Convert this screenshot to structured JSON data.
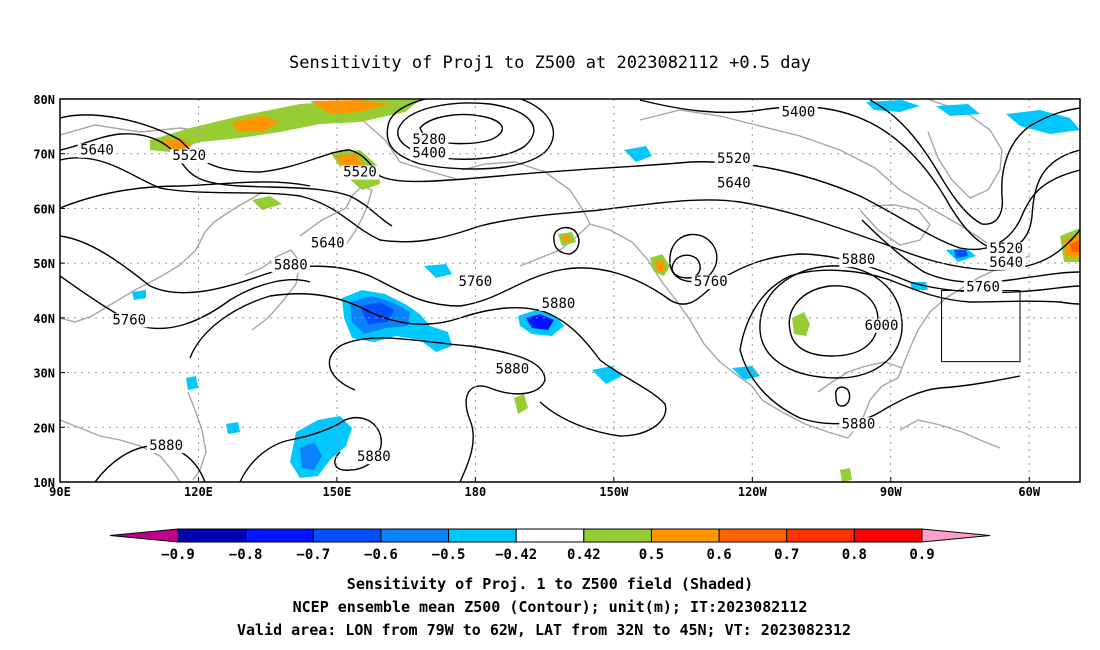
{
  "map": {
    "title": "Sensitivity of Proj1 to Z500 at 2023082112 +0.5 day",
    "lon_ticks": [
      "90E",
      "120E",
      "150E",
      "180",
      "150W",
      "120W",
      "90W",
      "60W"
    ],
    "lat_ticks": [
      "80N",
      "70N",
      "60N",
      "50N",
      "40N",
      "30N",
      "20N",
      "10N"
    ],
    "extent": {
      "lon_min_east": 90,
      "lon_max_east": 311,
      "lat_min": 10,
      "lat_max": 80
    },
    "contour_labels": [
      {
        "text": "5640",
        "lon": 98,
        "lat": 70
      },
      {
        "text": "5520",
        "lon": 118,
        "lat": 69
      },
      {
        "text": "5280",
        "lon": 170,
        "lat": 72
      },
      {
        "text": "5400",
        "lon": 170,
        "lat": 69.5
      },
      {
        "text": "5520",
        "lon": 155,
        "lat": 66
      },
      {
        "text": "5400",
        "lon": 250,
        "lat": 77
      },
      {
        "text": "5520",
        "lon": 236,
        "lat": 68.5
      },
      {
        "text": "5640",
        "lon": 236,
        "lat": 64
      },
      {
        "text": "5640",
        "lon": 148,
        "lat": 53
      },
      {
        "text": "5760",
        "lon": 180,
        "lat": 46
      },
      {
        "text": "5880",
        "lon": 140,
        "lat": 49
      },
      {
        "text": "5760",
        "lon": 105,
        "lat": 39
      },
      {
        "text": "5880",
        "lon": 198,
        "lat": 42
      },
      {
        "text": "5880",
        "lon": 188,
        "lat": 30
      },
      {
        "text": "5880",
        "lon": 113,
        "lat": 16
      },
      {
        "text": "5880",
        "lon": 158,
        "lat": 14
      },
      {
        "text": "5760",
        "lon": 231,
        "lat": 46
      },
      {
        "text": "5880",
        "lon": 263,
        "lat": 50
      },
      {
        "text": "6000",
        "lon": 268,
        "lat": 38
      },
      {
        "text": "5880",
        "lon": 263,
        "lat": 20
      },
      {
        "text": "5520",
        "lon": 295,
        "lat": 52
      },
      {
        "text": "5640",
        "lon": 295,
        "lat": 49.5
      },
      {
        "text": "5760",
        "lon": 290,
        "lat": 45
      }
    ],
    "valid_area": {
      "lon_west": 79,
      "lon_east": 62,
      "lat_south": 32,
      "lat_north": 45
    }
  },
  "colorbar": {
    "labels": [
      "−0.9",
      "−0.8",
      "−0.7",
      "−0.6",
      "−0.5",
      "−0.42",
      "0.42",
      "0.5",
      "0.6",
      "0.7",
      "0.8",
      "0.9"
    ],
    "colors": [
      "#c0008c",
      "#0000b4",
      "#0014ff",
      "#0050ff",
      "#0a82ff",
      "#00c8ff",
      "#ffffff",
      "#96cd32",
      "#ff9600",
      "#ff6400",
      "#ff3200",
      "#ff0000",
      "#ff9ec8"
    ]
  },
  "caption": {
    "line1": "Sensitivity of Proj. 1 to Z500 field (Shaded)",
    "line2": "NCEP ensemble mean Z500 (Contour); unit(m); IT:2023082112",
    "line3": "Valid area: LON from 79W to 62W, LAT from 32N to 45N; VT: 2023082312"
  }
}
